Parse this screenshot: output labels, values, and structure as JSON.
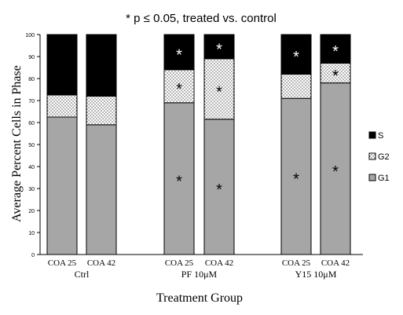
{
  "chart_data": {
    "type": "bar",
    "stacked": true,
    "title": "* p ≤ 0.05, treated vs. control",
    "xlabel": "Treatment Group",
    "ylabel": "Average Percent Cells in Phase",
    "ylim": [
      0,
      100
    ],
    "yticks": [
      0,
      10,
      20,
      30,
      40,
      50,
      60,
      70,
      80,
      90,
      100
    ],
    "grid": false,
    "legend_position": "right",
    "categories": [
      "COA 25",
      "COA 42",
      "COA 25",
      "COA 42",
      "COA 25",
      "COA 42"
    ],
    "groups": [
      {
        "label": "Ctrl",
        "categories": [
          "COA 25",
          "COA 42"
        ]
      },
      {
        "label": "PF 10μM",
        "categories": [
          "COA 25",
          "COA 42"
        ]
      },
      {
        "label": "Y15 10μM",
        "categories": [
          "COA 25",
          "COA 42"
        ]
      }
    ],
    "series": [
      {
        "name": "G1",
        "pattern": "solid-gray",
        "color": "#a6a6a6",
        "values": [
          62.5,
          59,
          69,
          61.5,
          71,
          78
        ]
      },
      {
        "name": "G2",
        "pattern": "dotted",
        "color": "#ffffff",
        "values": [
          10,
          13,
          15,
          27.5,
          11,
          9
        ]
      },
      {
        "name": "S",
        "pattern": "solid-black",
        "color": "#000000",
        "values": [
          27.5,
          28,
          16,
          11,
          18,
          13
        ]
      }
    ],
    "legend_order": [
      "S",
      "G2",
      "G1"
    ],
    "significance_marker": "*",
    "significant": {
      "G1": [
        false,
        false,
        true,
        true,
        true,
        true
      ],
      "G2": [
        false,
        false,
        true,
        true,
        false,
        true
      ],
      "S": [
        false,
        false,
        true,
        true,
        true,
        true
      ]
    }
  }
}
